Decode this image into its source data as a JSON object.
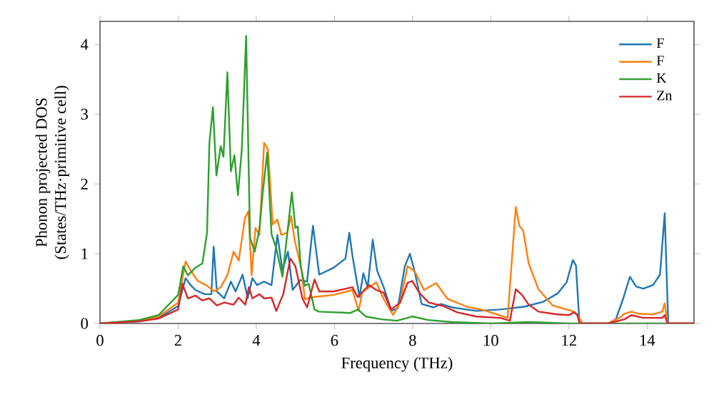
{
  "chart_data": {
    "type": "line",
    "xlabel": "Frequency (THz)",
    "ylabel": "Phonon projected DOS\n(States/THz·primitive cell)",
    "xlim": [
      0,
      15.2
    ],
    "ylim": [
      0,
      4.33
    ],
    "xticks": [
      0,
      2,
      4,
      6,
      8,
      10,
      12,
      14
    ],
    "yticks": [
      0,
      1,
      2,
      3,
      4
    ],
    "legend": "top right",
    "grid": false,
    "marker": "none",
    "line_style": "solid",
    "series": [
      {
        "name": "F",
        "color": "#1f77b4",
        "x": [
          0,
          1,
          1.5,
          2.0,
          2.19,
          2.32,
          2.44,
          2.68,
          2.85,
          2.91,
          2.99,
          3.18,
          3.35,
          3.47,
          3.65,
          3.78,
          3.9,
          4.02,
          4.2,
          4.39,
          4.54,
          4.67,
          4.81,
          4.93,
          5.12,
          5.3,
          5.45,
          5.61,
          5.98,
          6.28,
          6.38,
          6.46,
          6.64,
          6.74,
          6.85,
          6.98,
          7.09,
          7.26,
          7.46,
          7.62,
          7.8,
          7.93,
          8.05,
          8.23,
          8.54,
          8.72,
          9.02,
          9.63,
          10.24,
          10.85,
          11.34,
          11.71,
          11.94,
          12.1,
          12.18,
          12.27,
          13.0,
          13.2,
          13.39,
          13.56,
          13.72,
          13.9,
          14.15,
          14.33,
          14.45,
          14.54,
          15.2
        ],
        "values": [
          0,
          0.03,
          0.08,
          0.25,
          0.65,
          0.55,
          0.48,
          0.42,
          0.42,
          1.1,
          0.46,
          0.36,
          0.6,
          0.46,
          0.7,
          0.36,
          0.65,
          0.55,
          0.6,
          0.55,
          1.27,
          0.76,
          1.03,
          0.48,
          0.62,
          0.6,
          1.4,
          0.7,
          0.8,
          0.93,
          1.3,
          0.97,
          0.38,
          0.72,
          0.52,
          1.2,
          0.76,
          0.52,
          0.18,
          0.22,
          0.82,
          1.0,
          0.75,
          0.28,
          0.23,
          0.28,
          0.23,
          0.18,
          0.2,
          0.24,
          0.31,
          0.43,
          0.59,
          0.91,
          0.83,
          0,
          0,
          0.06,
          0.36,
          0.67,
          0.53,
          0.5,
          0.55,
          0.7,
          1.58,
          0,
          0
        ]
      },
      {
        "name": "F",
        "color": "#ff7f0e",
        "x": [
          0,
          1,
          1.5,
          2.0,
          2.19,
          2.32,
          2.5,
          2.74,
          2.93,
          3.09,
          3.26,
          3.42,
          3.55,
          3.71,
          3.8,
          3.88,
          3.98,
          4.08,
          4.2,
          4.3,
          4.42,
          4.54,
          4.64,
          4.79,
          4.89,
          4.98,
          5.16,
          5.24,
          5.49,
          5.98,
          6.46,
          6.62,
          6.71,
          7.07,
          7.26,
          7.5,
          7.68,
          7.87,
          8.05,
          8.29,
          8.6,
          8.9,
          9.39,
          9.82,
          10.43,
          10.64,
          10.73,
          10.83,
          10.97,
          11.22,
          11.58,
          11.94,
          12.13,
          12.26,
          12.35,
          13.0,
          13.29,
          13.42,
          13.6,
          13.78,
          14.15,
          14.39,
          14.45,
          14.52,
          15.2
        ],
        "values": [
          0,
          0.04,
          0.1,
          0.3,
          0.89,
          0.76,
          0.61,
          0.54,
          0.46,
          0.52,
          0.69,
          1.03,
          0.9,
          1.51,
          1.61,
          0.69,
          1.37,
          1.27,
          2.59,
          2.49,
          1.42,
          1.49,
          1.27,
          1.3,
          1.54,
          1.2,
          0.76,
          0.35,
          0.38,
          0.41,
          0.48,
          0.18,
          0.45,
          0.59,
          0.35,
          0.12,
          0.3,
          0.82,
          0.75,
          0.48,
          0.58,
          0.35,
          0.24,
          0.19,
          0.08,
          1.67,
          1.4,
          1.33,
          0.86,
          0.49,
          0.26,
          0.2,
          0.17,
          0.08,
          0,
          0,
          0.08,
          0.14,
          0.17,
          0.14,
          0.13,
          0.17,
          0.29,
          0,
          0
        ]
      },
      {
        "name": "K",
        "color": "#2ca02c",
        "x": [
          0,
          1,
          1.5,
          2.0,
          2.13,
          2.25,
          2.44,
          2.62,
          2.74,
          2.8,
          2.89,
          2.98,
          3.09,
          3.16,
          3.26,
          3.35,
          3.44,
          3.53,
          3.63,
          3.74,
          3.84,
          3.96,
          4.08,
          4.17,
          4.28,
          4.39,
          4.51,
          4.67,
          4.91,
          5.0,
          5.06,
          5.14,
          5.24,
          5.34,
          5.49,
          5.6,
          6.0,
          6.4,
          6.6,
          6.8,
          7.2,
          7.6,
          8.0,
          8.4,
          9.0,
          10.0,
          11.0,
          12.0,
          15.2
        ],
        "values": [
          0,
          0.05,
          0.12,
          0.41,
          0.82,
          0.69,
          0.8,
          0.86,
          1.3,
          2.59,
          3.1,
          2.12,
          2.54,
          2.39,
          3.6,
          2.18,
          2.41,
          1.84,
          2.5,
          4.12,
          1.23,
          1.03,
          1.35,
          1.9,
          2.45,
          1.28,
          1.08,
          0.67,
          1.88,
          1.37,
          1.39,
          0.81,
          0.54,
          0.57,
          0.2,
          0.17,
          0.16,
          0.15,
          0.2,
          0.1,
          0.06,
          0.04,
          0.1,
          0.05,
          0.02,
          0,
          0.02,
          0,
          0
        ]
      },
      {
        "name": "Zn",
        "color": "#d62728",
        "x": [
          0,
          1,
          1.5,
          2.0,
          2.11,
          2.25,
          2.44,
          2.62,
          2.8,
          2.99,
          3.18,
          3.42,
          3.55,
          3.72,
          3.81,
          3.9,
          4.08,
          4.2,
          4.39,
          4.51,
          4.69,
          4.87,
          5.0,
          5.18,
          5.3,
          5.49,
          5.61,
          5.98,
          6.46,
          6.59,
          6.89,
          7.07,
          7.26,
          7.45,
          7.68,
          7.87,
          7.99,
          8.17,
          8.41,
          8.78,
          9.14,
          9.63,
          10.24,
          10.49,
          10.64,
          10.8,
          10.97,
          11.22,
          11.7,
          12.0,
          12.13,
          12.21,
          12.27,
          13.0,
          13.42,
          13.6,
          13.9,
          14.39,
          14.45,
          14.52,
          15.2
        ],
        "values": [
          0,
          0.03,
          0.07,
          0.2,
          0.57,
          0.36,
          0.4,
          0.33,
          0.36,
          0.26,
          0.3,
          0.27,
          0.37,
          0.27,
          0.52,
          0.36,
          0.42,
          0.36,
          0.37,
          0.18,
          0.42,
          0.93,
          0.82,
          0.36,
          0.23,
          0.63,
          0.46,
          0.46,
          0.52,
          0.38,
          0.55,
          0.48,
          0.44,
          0.2,
          0.3,
          0.58,
          0.61,
          0.44,
          0.3,
          0.25,
          0.16,
          0.1,
          0.08,
          0.04,
          0.49,
          0.41,
          0.27,
          0.17,
          0.13,
          0.12,
          0.16,
          0.13,
          0,
          0,
          0.06,
          0.12,
          0.08,
          0.08,
          0.12,
          0,
          0
        ]
      }
    ]
  }
}
